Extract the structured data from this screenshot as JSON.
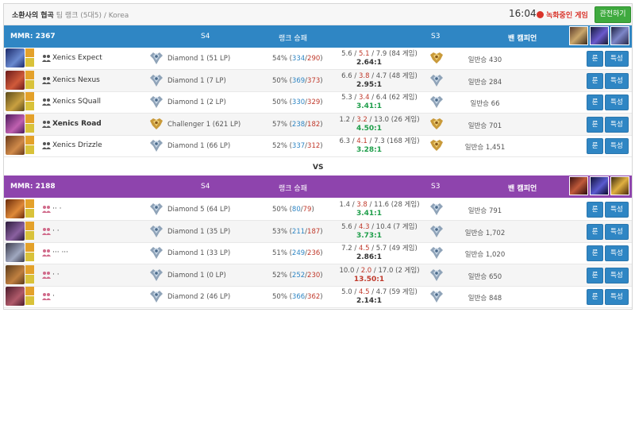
{
  "header": {
    "title": "소환사의 협곡",
    "subtitle": "팀 랭크 (5대5) / Korea",
    "clock": "16:04",
    "recording_label": "녹화중인 게임",
    "spectate_button": "관전하기"
  },
  "columns": {
    "season4": "S4",
    "rank_record": "랭크 승패",
    "season3": "S3",
    "bans": "밴 캠피언"
  },
  "vs_label": "VS",
  "row_buttons": {
    "rune": "룬",
    "mastery": "특성"
  },
  "colors": {
    "blue_team": "#2f86c4",
    "purple_team": "#8e44ad",
    "win": "#2f86c4",
    "loss": "#c0392b",
    "good_ratio": "#1e9e4a",
    "spectate": "#3faa3f",
    "recording": "#d9342b"
  },
  "teams": [
    {
      "mmr": "MMR: 2367",
      "ban_icons": [
        "ban-champion-icon",
        "ban-champion-icon",
        "ban-champion-icon"
      ],
      "players": [
        {
          "name": "Xenics Expect",
          "bold": false,
          "tier": "Diamond 1 (51 LP)",
          "tier_icon": "diamond",
          "pct": "54% (",
          "wins": "334",
          "losses": "290",
          "k": "5.6",
          "d": "5.1",
          "a": "7.9 (84 게임)",
          "ratio": "2.64:1",
          "ratio_color": "normal",
          "s3_icon": "gold",
          "normal_wins": "일반승 430"
        },
        {
          "name": "Xenics Nexus",
          "bold": false,
          "tier": "Diamond 1 (7 LP)",
          "tier_icon": "diamond",
          "pct": "50% (",
          "wins": "369",
          "losses": "373",
          "k": "6.6",
          "d": "3.8",
          "a": "4.7 (48 게임)",
          "ratio": "2.95:1",
          "ratio_color": "normal",
          "s3_icon": "diamond",
          "normal_wins": "일반승 284"
        },
        {
          "name": "Xenics SQuall",
          "bold": false,
          "tier": "Diamond 1 (2 LP)",
          "tier_icon": "diamond",
          "pct": "50% (",
          "wins": "330",
          "losses": "329",
          "k": "5.3",
          "d": "3.4",
          "a": "6.4 (62 게임)",
          "ratio": "3.41:1",
          "ratio_color": "green",
          "s3_icon": "diamond",
          "normal_wins": "일반승 66"
        },
        {
          "name": "Xenics Road",
          "bold": true,
          "tier": "Challenger 1 (621 LP)",
          "tier_icon": "challenger",
          "pct": "57% (",
          "wins": "238",
          "losses": "182",
          "k": "1.2",
          "d": "3.2",
          "a": "13.0 (26 게임)",
          "ratio": "4.50:1",
          "ratio_color": "green",
          "s3_icon": "gold",
          "normal_wins": "일반승 701"
        },
        {
          "name": "Xenics Drizzle",
          "bold": false,
          "tier": "Diamond 1 (66 LP)",
          "tier_icon": "diamond",
          "pct": "52% (",
          "wins": "337",
          "losses": "312",
          "k": "6.3",
          "d": "4.1",
          "a": "7.3 (168 게임)",
          "ratio": "3.28:1",
          "ratio_color": "green",
          "s3_icon": "gold",
          "normal_wins": "일반승 1,451"
        }
      ]
    },
    {
      "mmr": "MMR: 2188",
      "ban_icons": [
        "ban-champion-icon",
        "ban-champion-icon",
        "ban-champion-icon"
      ],
      "players": [
        {
          "name": "·· ·",
          "bold": false,
          "tier": "Diamond 5 (64 LP)",
          "tier_icon": "diamond",
          "pct": "50% (",
          "wins": "80",
          "losses": "79",
          "k": "1.4",
          "d": "3.8",
          "a": "11.6 (28 게임)",
          "ratio": "3.41:1",
          "ratio_color": "green",
          "s3_icon": "diamond",
          "normal_wins": "일반승 791"
        },
        {
          "name": "· ·",
          "bold": false,
          "tier": "Diamond 1 (35 LP)",
          "tier_icon": "diamond",
          "pct": "53% (",
          "wins": "211",
          "losses": "187",
          "k": "5.6",
          "d": "4.3",
          "a": "10.4 (7 게임)",
          "ratio": "3.73:1",
          "ratio_color": "green",
          "s3_icon": "diamond",
          "normal_wins": "일반승 1,702"
        },
        {
          "name": "··· ···",
          "bold": false,
          "tier": "Diamond 1 (33 LP)",
          "tier_icon": "diamond",
          "pct": "51% (",
          "wins": "249",
          "losses": "236",
          "k": "7.2",
          "d": "4.5",
          "a": "5.7 (49 게임)",
          "ratio": "2.86:1",
          "ratio_color": "normal",
          "s3_icon": "diamond",
          "normal_wins": "일반승 1,020"
        },
        {
          "name": "· ·",
          "bold": false,
          "tier": "Diamond 1 (0 LP)",
          "tier_icon": "diamond",
          "pct": "52% (",
          "wins": "252",
          "losses": "230",
          "k": "10.0",
          "d": "2.0",
          "a": "17.0 (2 게임)",
          "ratio": "13.50:1",
          "ratio_color": "red",
          "s3_icon": "diamond",
          "normal_wins": "일반승 650"
        },
        {
          "name": "·",
          "bold": false,
          "tier": "Diamond 2 (46 LP)",
          "tier_icon": "diamond",
          "pct": "50% (",
          "wins": "366",
          "losses": "362",
          "k": "5.0",
          "d": "4.5",
          "a": "4.7 (59 게임)",
          "ratio": "2.14:1",
          "ratio_color": "normal",
          "s3_icon": "diamond",
          "normal_wins": "일반승 848"
        }
      ]
    }
  ]
}
